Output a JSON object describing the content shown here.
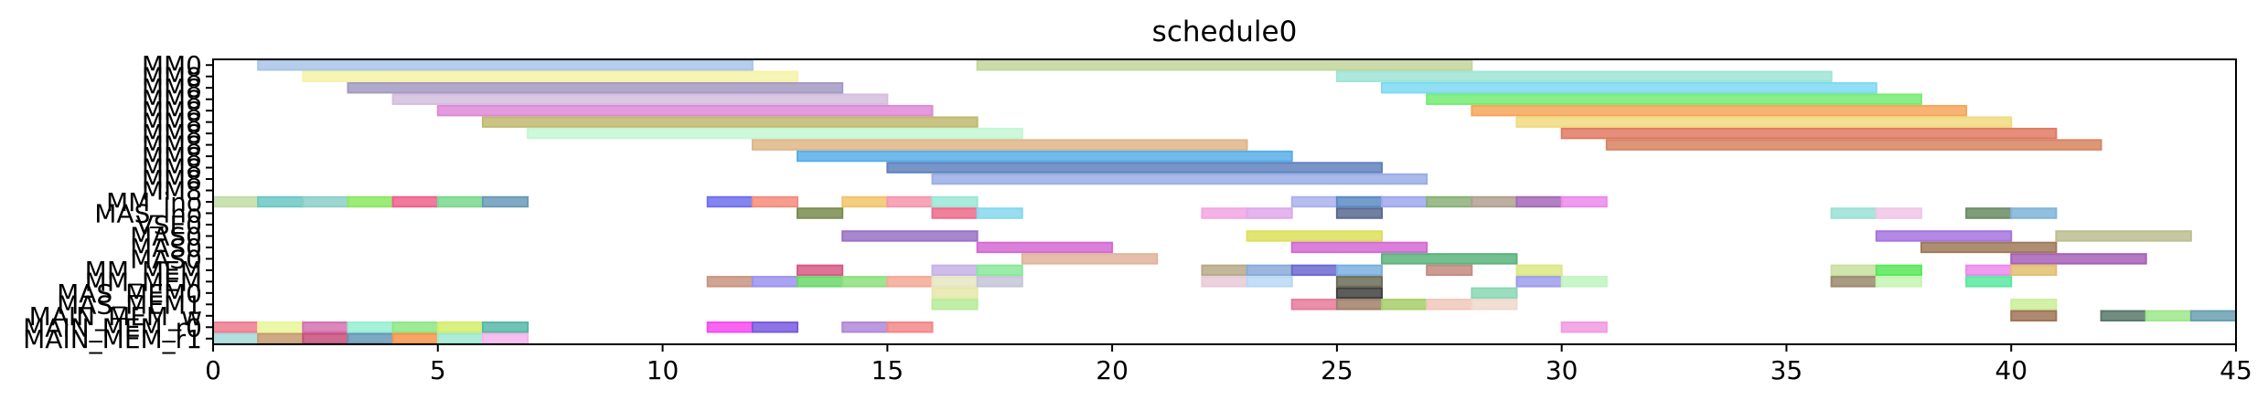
{
  "chart_data": {
    "type": "gantt",
    "title": "schedule0",
    "xlim": [
      0,
      45
    ],
    "x_ticks": [
      0,
      5,
      10,
      15,
      20,
      25,
      30,
      35,
      40,
      45
    ],
    "y_rows": [
      "MM0",
      "MM8",
      "MM8",
      "MM8",
      "MM8",
      "MM8",
      "MM8",
      "MM8",
      "MM8",
      "MM8",
      "MM8",
      "MM8",
      "MM_ino",
      "MAS_ino",
      "VSE0",
      "MAS0",
      "MAS0",
      "MAS0",
      "MM_MEM",
      "MM_MEM",
      "MAS_MEM0",
      "MAS_MEM1",
      "MAIN_MEM_w",
      "MAIN_MEM_r0",
      "MAIN_MEM_r1"
    ],
    "tasks": [
      {
        "row": 0,
        "start": 1,
        "end": 12,
        "color": "#a9c4e8"
      },
      {
        "row": 0,
        "start": 17,
        "end": 28,
        "color": "#c2d69b"
      },
      {
        "row": 1,
        "start": 2,
        "end": 13,
        "color": "#f6f3a8"
      },
      {
        "row": 1,
        "start": 25,
        "end": 36,
        "color": "#9ee5d6"
      },
      {
        "row": 2,
        "start": 3,
        "end": 14,
        "color": "#a39ac2"
      },
      {
        "row": 2,
        "start": 26,
        "end": 37,
        "color": "#7ed9f2"
      },
      {
        "row": 3,
        "start": 4,
        "end": 15,
        "color": "#d4bede"
      },
      {
        "row": 3,
        "start": 27,
        "end": 38,
        "color": "#74ec74"
      },
      {
        "row": 4,
        "start": 5,
        "end": 16,
        "color": "#de8ad8"
      },
      {
        "row": 4,
        "start": 28,
        "end": 39,
        "color": "#f6a65a"
      },
      {
        "row": 5,
        "start": 6,
        "end": 17,
        "color": "#c0ba70"
      },
      {
        "row": 5,
        "start": 29,
        "end": 40,
        "color": "#f1da80"
      },
      {
        "row": 6,
        "start": 7,
        "end": 18,
        "color": "#c4f7d4"
      },
      {
        "row": 6,
        "start": 30,
        "end": 41,
        "color": "#e07a64"
      },
      {
        "row": 7,
        "start": 12,
        "end": 23,
        "color": "#e0b688"
      },
      {
        "row": 7,
        "start": 31,
        "end": 42,
        "color": "#d88462"
      },
      {
        "row": 8,
        "start": 13,
        "end": 24,
        "color": "#58aee8"
      },
      {
        "row": 9,
        "start": 15,
        "end": 26,
        "color": "#6182be"
      },
      {
        "row": 10,
        "start": 16,
        "end": 27,
        "color": "#9aaee6"
      },
      {
        "row": 12,
        "start": 0,
        "end": 1,
        "color": "#c2dca4"
      },
      {
        "row": 12,
        "start": 1,
        "end": 2,
        "color": "#6cc8c4"
      },
      {
        "row": 12,
        "start": 2,
        "end": 3,
        "color": "#8ccfc8"
      },
      {
        "row": 12,
        "start": 3,
        "end": 4,
        "color": "#8ce862"
      },
      {
        "row": 12,
        "start": 4,
        "end": 5,
        "color": "#f0608c"
      },
      {
        "row": 12,
        "start": 5,
        "end": 6,
        "color": "#7ad88e"
      },
      {
        "row": 12,
        "start": 6,
        "end": 7,
        "color": "#6a9ab8"
      },
      {
        "row": 12,
        "start": 11,
        "end": 12,
        "color": "#7070ee"
      },
      {
        "row": 12,
        "start": 12,
        "end": 13,
        "color": "#f48c7c"
      },
      {
        "row": 12,
        "start": 14,
        "end": 15,
        "color": "#f2c46a"
      },
      {
        "row": 12,
        "start": 15,
        "end": 16,
        "color": "#f696ae"
      },
      {
        "row": 12,
        "start": 16,
        "end": 17,
        "color": "#9ae8d6"
      },
      {
        "row": 12,
        "start": 24,
        "end": 25,
        "color": "#aab2ec"
      },
      {
        "row": 12,
        "start": 25,
        "end": 26,
        "color": "#5a8cc4"
      },
      {
        "row": 12,
        "start": 26,
        "end": 27,
        "color": "#9ea8ec"
      },
      {
        "row": 12,
        "start": 27,
        "end": 28,
        "color": "#8ab078"
      },
      {
        "row": 12,
        "start": 28,
        "end": 29,
        "color": "#b0a090"
      },
      {
        "row": 12,
        "start": 29,
        "end": 30,
        "color": "#a46ab8"
      },
      {
        "row": 12,
        "start": 30,
        "end": 31,
        "color": "#ec8aec"
      },
      {
        "row": 13,
        "start": 13,
        "end": 14,
        "color": "#7a8c50"
      },
      {
        "row": 13,
        "start": 16,
        "end": 17,
        "color": "#ee6a8a"
      },
      {
        "row": 13,
        "start": 17,
        "end": 18,
        "color": "#86d8ee"
      },
      {
        "row": 13,
        "start": 22,
        "end": 23,
        "color": "#f2a6e2"
      },
      {
        "row": 13,
        "start": 23,
        "end": 24,
        "color": "#e0a8ec"
      },
      {
        "row": 13,
        "start": 25,
        "end": 26,
        "color": "#5a6890"
      },
      {
        "row": 13,
        "start": 36,
        "end": 37,
        "color": "#9ae0d4"
      },
      {
        "row": 13,
        "start": 37,
        "end": 38,
        "color": "#f0c6e8"
      },
      {
        "row": 13,
        "start": 39,
        "end": 40,
        "color": "#6a8c64"
      },
      {
        "row": 13,
        "start": 40,
        "end": 41,
        "color": "#80b4d8"
      },
      {
        "row": 15,
        "start": 14,
        "end": 17,
        "color": "#9a72c6"
      },
      {
        "row": 15,
        "start": 23,
        "end": 26,
        "color": "#dce05a"
      },
      {
        "row": 15,
        "start": 37,
        "end": 40,
        "color": "#a674e0"
      },
      {
        "row": 15,
        "start": 41,
        "end": 44,
        "color": "#bcbe92"
      },
      {
        "row": 16,
        "start": 17,
        "end": 20,
        "color": "#d46ad4"
      },
      {
        "row": 16,
        "start": 24,
        "end": 27,
        "color": "#d46ad4"
      },
      {
        "row": 16,
        "start": 38,
        "end": 41,
        "color": "#a07a5a"
      },
      {
        "row": 17,
        "start": 18,
        "end": 21,
        "color": "#e0b49c"
      },
      {
        "row": 17,
        "start": 26,
        "end": 29,
        "color": "#5ab47c"
      },
      {
        "row": 17,
        "start": 40,
        "end": 43,
        "color": "#a860b8"
      },
      {
        "row": 18,
        "start": 13,
        "end": 14,
        "color": "#d85a86"
      },
      {
        "row": 18,
        "start": 16,
        "end": 17,
        "color": "#c6b2e6"
      },
      {
        "row": 18,
        "start": 17,
        "end": 18,
        "color": "#8ae89a"
      },
      {
        "row": 18,
        "start": 22,
        "end": 23,
        "color": "#b8aa88"
      },
      {
        "row": 18,
        "start": 23,
        "end": 24,
        "color": "#8aaad8"
      },
      {
        "row": 18,
        "start": 24,
        "end": 25,
        "color": "#6a6ad0"
      },
      {
        "row": 18,
        "start": 25,
        "end": 26,
        "color": "#7ab0e0"
      },
      {
        "row": 18,
        "start": 27,
        "end": 28,
        "color": "#c48a80"
      },
      {
        "row": 18,
        "start": 29,
        "end": 30,
        "color": "#dce882"
      },
      {
        "row": 18,
        "start": 36,
        "end": 37,
        "color": "#c8e0a0"
      },
      {
        "row": 18,
        "start": 37,
        "end": 38,
        "color": "#5ae85a"
      },
      {
        "row": 18,
        "start": 39,
        "end": 40,
        "color": "#ec8aec"
      },
      {
        "row": 18,
        "start": 40,
        "end": 41,
        "color": "#e0c070"
      },
      {
        "row": 19,
        "start": 11,
        "end": 12,
        "color": "#c89480"
      },
      {
        "row": 19,
        "start": 12,
        "end": 13,
        "color": "#9c92ee"
      },
      {
        "row": 19,
        "start": 13,
        "end": 14,
        "color": "#6ad86a"
      },
      {
        "row": 19,
        "start": 14,
        "end": 15,
        "color": "#8ce07c"
      },
      {
        "row": 19,
        "start": 15,
        "end": 16,
        "color": "#f6a896"
      },
      {
        "row": 19,
        "start": 16,
        "end": 17,
        "color": "#e6e6c4"
      },
      {
        "row": 19,
        "start": 17,
        "end": 18,
        "color": "#c4c4d8"
      },
      {
        "row": 19,
        "start": 22,
        "end": 23,
        "color": "#e8cad8"
      },
      {
        "row": 19,
        "start": 23,
        "end": 24,
        "color": "#b8d8f4"
      },
      {
        "row": 19,
        "start": 25,
        "end": 26,
        "color": "#6c6c58"
      },
      {
        "row": 19,
        "start": 29,
        "end": 30,
        "color": "#9c9cea"
      },
      {
        "row": 19,
        "start": 30,
        "end": 31,
        "color": "#c0f4c0"
      },
      {
        "row": 19,
        "start": 36,
        "end": 37,
        "color": "#9a8a6c"
      },
      {
        "row": 19,
        "start": 37,
        "end": 38,
        "color": "#c6f4b4"
      },
      {
        "row": 19,
        "start": 39,
        "end": 40,
        "color": "#5ae8a0"
      },
      {
        "row": 20,
        "start": 16,
        "end": 17,
        "color": "#e6e8aa"
      },
      {
        "row": 20,
        "start": 25,
        "end": 26,
        "color": "#404040"
      },
      {
        "row": 20,
        "start": 28,
        "end": 29,
        "color": "#8ad8b4"
      },
      {
        "row": 21,
        "start": 16,
        "end": 17,
        "color": "#b6ec98"
      },
      {
        "row": 21,
        "start": 24,
        "end": 25,
        "color": "#e87a9a"
      },
      {
        "row": 21,
        "start": 25,
        "end": 26,
        "color": "#a0806a"
      },
      {
        "row": 21,
        "start": 26,
        "end": 27,
        "color": "#a6ce6a"
      },
      {
        "row": 21,
        "start": 27,
        "end": 28,
        "color": "#f0c8b8"
      },
      {
        "row": 21,
        "start": 28,
        "end": 29,
        "color": "#f0d8cc"
      },
      {
        "row": 21,
        "start": 40,
        "end": 41,
        "color": "#ccee9a"
      },
      {
        "row": 22,
        "start": 40,
        "end": 41,
        "color": "#a07458"
      },
      {
        "row": 22,
        "start": 42,
        "end": 43,
        "color": "#5a786c"
      },
      {
        "row": 22,
        "start": 43,
        "end": 44,
        "color": "#9ee88a"
      },
      {
        "row": 22,
        "start": 44,
        "end": 45,
        "color": "#6aa0b0"
      },
      {
        "row": 23,
        "start": 0,
        "end": 1,
        "color": "#ee7a8e"
      },
      {
        "row": 23,
        "start": 1,
        "end": 2,
        "color": "#eaf69a"
      },
      {
        "row": 23,
        "start": 2,
        "end": 3,
        "color": "#d472b0"
      },
      {
        "row": 23,
        "start": 3,
        "end": 4,
        "color": "#96eed0"
      },
      {
        "row": 23,
        "start": 4,
        "end": 5,
        "color": "#8ce884"
      },
      {
        "row": 23,
        "start": 5,
        "end": 6,
        "color": "#d2ee6a"
      },
      {
        "row": 23,
        "start": 6,
        "end": 7,
        "color": "#58b8a8"
      },
      {
        "row": 23,
        "start": 11,
        "end": 12,
        "color": "#f64aee"
      },
      {
        "row": 23,
        "start": 12,
        "end": 13,
        "color": "#7a5ae0"
      },
      {
        "row": 23,
        "start": 14,
        "end": 15,
        "color": "#b088d8"
      },
      {
        "row": 23,
        "start": 15,
        "end": 16,
        "color": "#f28888"
      },
      {
        "row": 23,
        "start": 30,
        "end": 31,
        "color": "#f29ae2"
      },
      {
        "row": 24,
        "start": 0,
        "end": 1,
        "color": "#a6d8d8"
      },
      {
        "row": 24,
        "start": 1,
        "end": 2,
        "color": "#c69a70"
      },
      {
        "row": 24,
        "start": 2,
        "end": 3,
        "color": "#c4507a"
      },
      {
        "row": 24,
        "start": 3,
        "end": 4,
        "color": "#6698b8"
      },
      {
        "row": 24,
        "start": 4,
        "end": 5,
        "color": "#f6944a"
      },
      {
        "row": 24,
        "start": 5,
        "end": 6,
        "color": "#9ee8d0"
      },
      {
        "row": 24,
        "start": 6,
        "end": 7,
        "color": "#f4b4ec"
      }
    ]
  }
}
